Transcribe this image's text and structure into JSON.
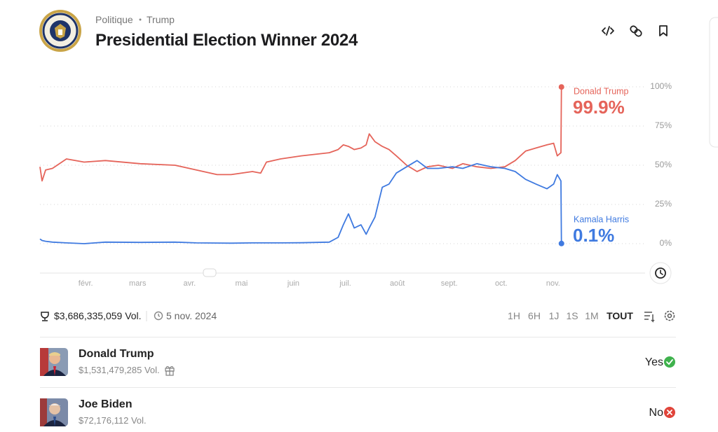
{
  "header": {
    "breadcrumb": [
      "Politique",
      "Trump"
    ],
    "title": "Presidential Election Winner 2024"
  },
  "chart_data": {
    "type": "line",
    "x": [
      0.12,
      0.16,
      0.23,
      0.36,
      0.63,
      0.97,
      1.38,
      2.05,
      2.72,
      3.13,
      3.53,
      3.8,
      4.21,
      4.37,
      4.48,
      4.75,
      5.15,
      5.69,
      5.86,
      5.96,
      6.06,
      6.17,
      6.3,
      6.4,
      6.46,
      6.57,
      6.71,
      6.84,
      6.98,
      7.18,
      7.38,
      7.58,
      7.79,
      8.06,
      8.26,
      8.53,
      8.8,
      9.07,
      9.27,
      9.47,
      9.67,
      9.88,
      10.01,
      10.08,
      10.15,
      10.16
    ],
    "series": [
      {
        "name": "Donald Trump",
        "color": "#e5645a",
        "values": [
          49,
          40,
          47,
          48,
          54,
          52,
          53,
          51,
          50,
          47,
          44,
          44,
          46,
          45,
          52,
          54,
          56,
          58,
          60,
          63,
          62,
          60,
          61,
          63,
          70,
          65,
          62,
          60,
          56,
          50,
          46,
          49,
          50,
          48,
          51,
          49,
          48,
          49,
          53,
          59,
          61,
          63,
          64,
          56,
          58,
          99.9
        ],
        "value_labels": [
          null,
          null,
          null,
          null,
          null,
          null,
          null,
          null,
          null,
          null,
          null,
          null,
          null,
          null,
          null,
          null,
          null,
          null,
          null,
          null,
          null,
          null,
          null,
          null,
          null,
          null,
          null,
          null,
          null,
          null,
          null,
          null,
          null,
          null,
          null,
          null,
          null,
          null,
          null,
          null,
          null,
          null,
          null,
          null,
          null,
          "99.9%"
        ]
      },
      {
        "name": "Kamala Harris",
        "color": "#3f7ae0",
        "values": [
          3,
          2,
          1.5,
          1,
          0.5,
          0,
          1,
          0.8,
          1,
          0.5,
          0.4,
          0.3,
          0.5,
          0.5,
          0.5,
          0.5,
          0.6,
          1,
          4,
          12,
          19,
          10,
          12,
          6,
          10,
          17,
          36,
          38,
          45,
          49,
          53,
          48,
          48,
          49,
          48,
          51,
          49,
          48,
          46,
          41,
          38,
          35,
          38,
          44,
          40,
          0.1
        ],
        "value_labels": [
          null,
          null,
          null,
          null,
          null,
          null,
          null,
          null,
          null,
          null,
          null,
          null,
          null,
          null,
          null,
          null,
          null,
          null,
          null,
          null,
          null,
          null,
          null,
          null,
          null,
          null,
          null,
          null,
          null,
          null,
          null,
          null,
          null,
          null,
          null,
          null,
          null,
          null,
          null,
          null,
          null,
          null,
          null,
          null,
          null,
          "0.1%"
        ]
      }
    ],
    "xlim": [
      0.12,
      11.77
    ],
    "xticks": [
      {
        "value": 1,
        "label": "févr."
      },
      {
        "value": 2,
        "label": "mars"
      },
      {
        "value": 3,
        "label": "avr."
      },
      {
        "value": 4,
        "label": "mai"
      },
      {
        "value": 5,
        "label": "juin"
      },
      {
        "value": 6,
        "label": "juil."
      },
      {
        "value": 7,
        "label": "août"
      },
      {
        "value": 8,
        "label": "sept."
      },
      {
        "value": 9,
        "label": "oct."
      },
      {
        "value": 10,
        "label": "nov."
      }
    ],
    "ylim": [
      0,
      100
    ],
    "yticks": [
      {
        "value": 0,
        "label": "0%"
      },
      {
        "value": 25,
        "label": "25%"
      },
      {
        "value": 50,
        "label": "50%"
      },
      {
        "value": 75,
        "label": "75%"
      },
      {
        "value": 100,
        "label": "100%"
      }
    ],
    "grid": true
  },
  "stats": {
    "volume": "$3,686,335,059 Vol.",
    "date": "5 nov. 2024"
  },
  "timeframes": [
    "1H",
    "6H",
    "1J",
    "1S",
    "1M",
    "TOUT"
  ],
  "outcomes": [
    {
      "name": "Donald Trump",
      "volume": "$1,531,479,285 Vol.",
      "result": "Yes"
    },
    {
      "name": "Joe Biden",
      "volume": "$72,176,112 Vol.",
      "result": "No"
    }
  ]
}
